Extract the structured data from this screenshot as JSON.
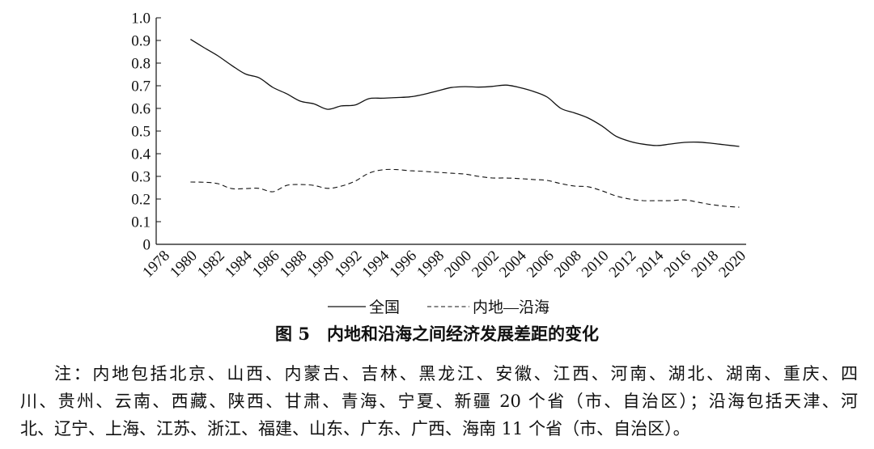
{
  "chart_data": {
    "type": "line",
    "x": [
      1980,
      1981,
      1982,
      1983,
      1984,
      1985,
      1986,
      1987,
      1988,
      1989,
      1990,
      1991,
      1992,
      1993,
      1994,
      1995,
      1996,
      1997,
      1998,
      1999,
      2000,
      2001,
      2002,
      2003,
      2004,
      2005,
      2006,
      2007,
      2008,
      2009,
      2010,
      2011,
      2012,
      2013,
      2014,
      2015,
      2016,
      2017,
      2018,
      2019,
      2020
    ],
    "series": [
      {
        "name": "全国",
        "line_style": "solid",
        "color": "#111111",
        "values": [
          0.905,
          0.868,
          0.832,
          0.79,
          0.752,
          0.735,
          0.693,
          0.665,
          0.632,
          0.62,
          0.596,
          0.611,
          0.615,
          0.643,
          0.645,
          0.648,
          0.651,
          0.662,
          0.677,
          0.692,
          0.696,
          0.694,
          0.697,
          0.703,
          0.692,
          0.675,
          0.65,
          0.6,
          0.58,
          0.557,
          0.522,
          0.478,
          0.455,
          0.442,
          0.436,
          0.443,
          0.45,
          0.451,
          0.446,
          0.439,
          0.432
        ]
      },
      {
        "name": "内地—沿海",
        "line_style": "dashed",
        "color": "#111111",
        "values": [
          0.275,
          0.274,
          0.268,
          0.246,
          0.246,
          0.247,
          0.232,
          0.26,
          0.264,
          0.26,
          0.247,
          0.257,
          0.279,
          0.314,
          0.329,
          0.33,
          0.325,
          0.322,
          0.318,
          0.314,
          0.31,
          0.3,
          0.293,
          0.293,
          0.29,
          0.286,
          0.282,
          0.268,
          0.257,
          0.254,
          0.236,
          0.214,
          0.2,
          0.193,
          0.193,
          0.193,
          0.196,
          0.186,
          0.175,
          0.168,
          0.164
        ]
      }
    ],
    "x_ticks": [
      "1978",
      "1980",
      "1982",
      "1984",
      "1986",
      "1988",
      "1990",
      "1992",
      "1994",
      "1996",
      "1998",
      "2000",
      "2002",
      "2004",
      "2006",
      "2008",
      "2010",
      "2012",
      "2014",
      "2016",
      "2018",
      "2020"
    ],
    "y_ticks": [
      "0",
      "0.1",
      "0.2",
      "0.3",
      "0.4",
      "0.5",
      "0.6",
      "0.7",
      "0.8",
      "0.9",
      "1.0"
    ],
    "xlim": [
      1978,
      2020
    ],
    "ylim": [
      0,
      1.0
    ],
    "grid": false,
    "legend": "bottom-center"
  },
  "caption": "图 5　内地和沿海之间经济发展差距的变化",
  "note": {
    "lines": [
      "注：内地包括北京、山西、内蒙古、吉林、黑龙江、安徽、江西、河南、湖北、湖南、重庆、四",
      "川、贵州、云南、西藏、陕西、甘肃、青海、宁夏、新疆 20 个省（市、自治区）；沿海包括天津、河",
      "北、辽宁、上海、江苏、浙江、福建、山东、广东、广西、海南 11 个省（市、自治区）。"
    ]
  }
}
